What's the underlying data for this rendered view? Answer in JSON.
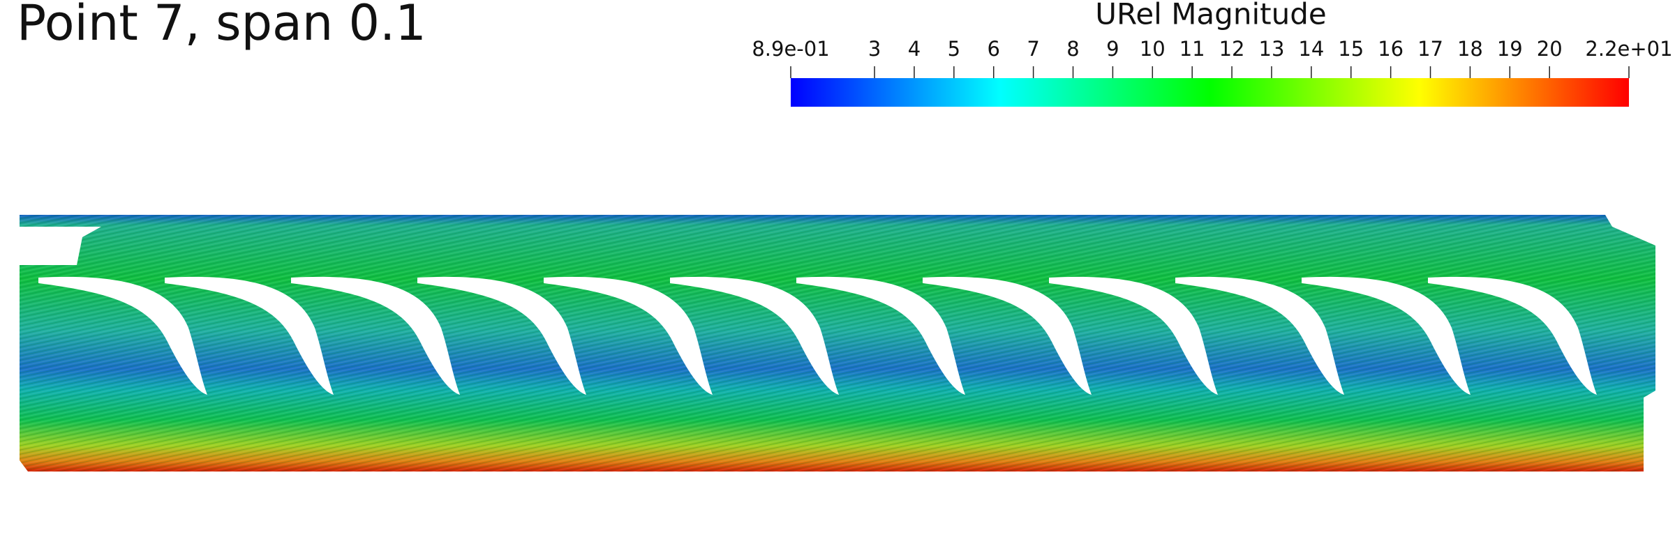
{
  "title": "Point 7, span 0.1",
  "colorbar": {
    "title": "URel Magnitude",
    "range": [
      0.89,
      22
    ],
    "colors": [
      "#0000ff",
      "#00ffff",
      "#00ff00",
      "#ffff00",
      "#ff0000"
    ],
    "ticks": [
      {
        "value": 0.89,
        "label": "8.9e-01"
      },
      3,
      4,
      5,
      6,
      7,
      8,
      9,
      10,
      11,
      12,
      13,
      14,
      15,
      16,
      17,
      18,
      19,
      20,
      {
        "value": 22,
        "label": "2.2e+01"
      }
    ]
  }
}
